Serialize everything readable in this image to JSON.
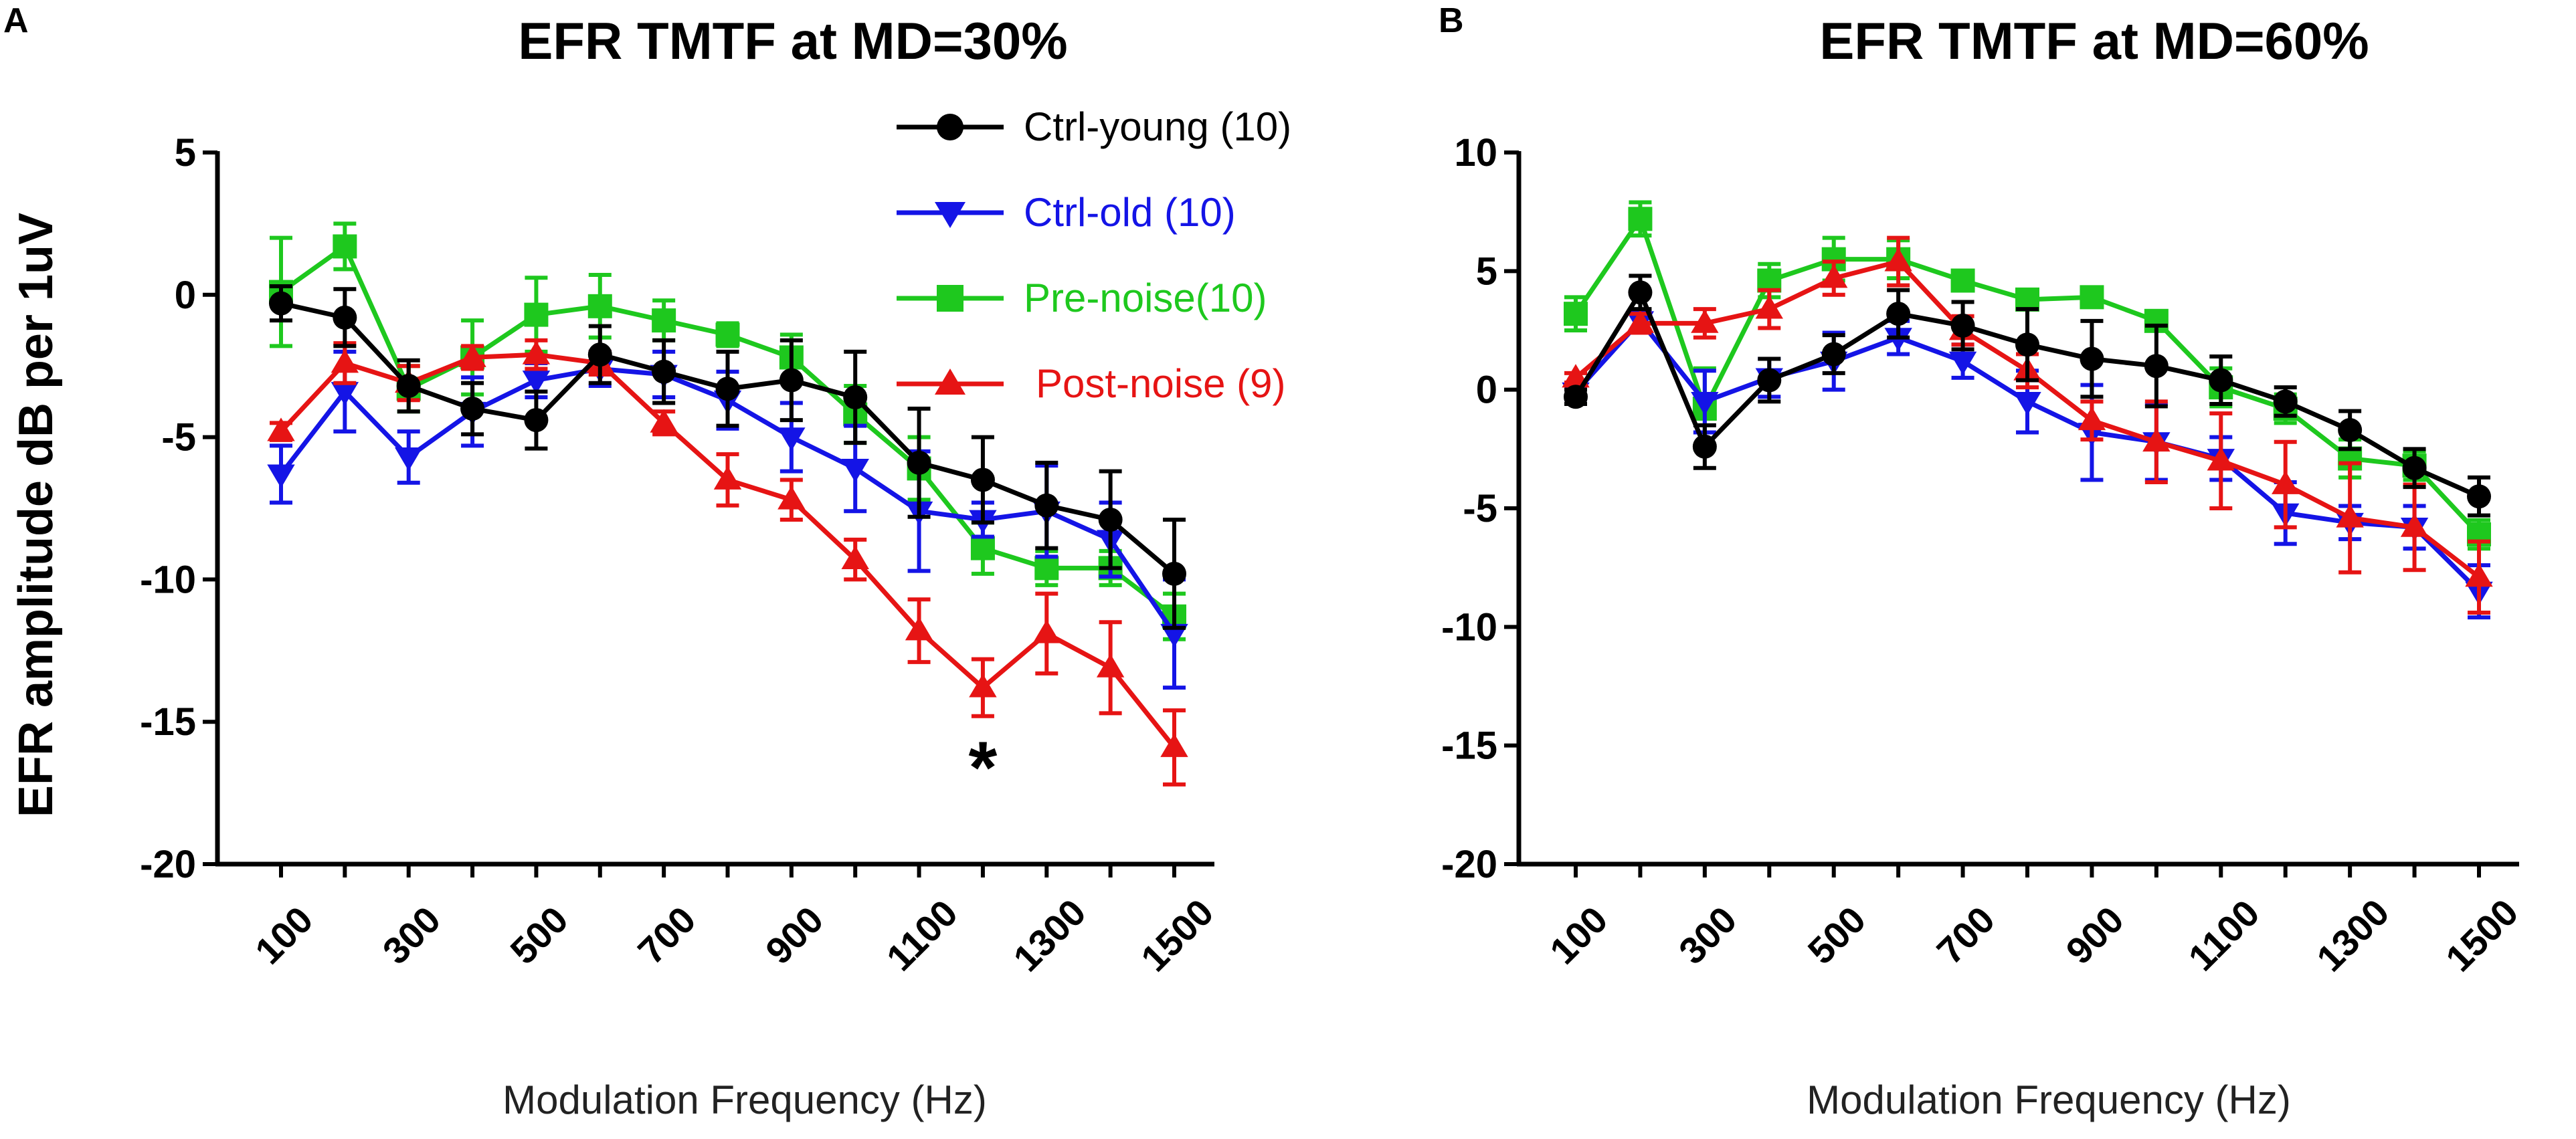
{
  "panels": [
    {
      "letter": "A",
      "title": "EFR TMTF at MD=30%"
    },
    {
      "letter": "B",
      "title": "EFR TMTF at MD=60%"
    }
  ],
  "y_axis_label": "EFR amplitude dB per 1uV",
  "x_axis_label": "Modulation Frequency (Hz)",
  "colors": {
    "ctrl_young": "#000000",
    "ctrl_old": "#1414e6",
    "pre_noise": "#1ec81e",
    "post_noise": "#e61414"
  },
  "legend": [
    {
      "label": "Ctrl-young (10)",
      "color": "#000000",
      "marker": "circle"
    },
    {
      "label": "Ctrl-old (10)",
      "color": "#1414e6",
      "marker": "triangle-down"
    },
    {
      "label": "Pre-noise(10)",
      "color": "#1ec81e",
      "marker": "square"
    },
    {
      "label": "Post-noise (9)",
      "color": "#e61414",
      "marker": "triangle-up"
    }
  ],
  "chart_data": [
    {
      "type": "line",
      "title": "EFR TMTF at MD=30%",
      "xlabel": "Modulation Frequency (Hz)",
      "ylabel": "EFR amplitude dB per 1uV",
      "x": [
        100,
        200,
        300,
        400,
        500,
        600,
        700,
        800,
        900,
        1000,
        1100,
        1200,
        1300,
        1400,
        1500
      ],
      "xticks": [
        100,
        300,
        500,
        700,
        900,
        1100,
        1300,
        1500
      ],
      "xlim": [
        50,
        1550
      ],
      "ylim": [
        -20,
        5
      ],
      "yticks": [
        5,
        0,
        -5,
        -10,
        -15,
        -20
      ],
      "annotation": {
        "text": "*",
        "x": 1200,
        "y": -16.2
      },
      "series": [
        {
          "name": "Ctrl-young (10)",
          "marker": "circle",
          "color": "#000000",
          "values": [
            -0.3,
            -0.8,
            -3.2,
            -4.0,
            -4.4,
            -2.1,
            -2.7,
            -3.3,
            -3.0,
            -3.6,
            -5.9,
            -6.5,
            -7.4,
            -7.9,
            -9.8
          ],
          "err": [
            0.6,
            1.0,
            0.9,
            0.9,
            1.0,
            1.0,
            1.1,
            1.3,
            1.4,
            1.6,
            1.9,
            1.5,
            1.5,
            1.7,
            1.9
          ]
        },
        {
          "name": "Ctrl-old (10)",
          "marker": "triangle-down",
          "color": "#1414e6",
          "values": [
            -6.3,
            -3.4,
            -5.7,
            -4.1,
            -3.0,
            -2.6,
            -2.8,
            -3.7,
            -5.0,
            -6.1,
            -7.6,
            -7.9,
            -7.6,
            -8.6,
            -11.9
          ],
          "err": [
            1.0,
            1.4,
            0.9,
            1.2,
            0.6,
            0.6,
            0.8,
            1.0,
            1.2,
            1.5,
            2.1,
            0.6,
            1.6,
            1.3,
            1.9
          ]
        },
        {
          "name": "Pre-noise(10)",
          "marker": "square",
          "color": "#1ec81e",
          "values": [
            0.1,
            1.7,
            -3.3,
            -2.2,
            -0.7,
            -0.4,
            -0.9,
            -1.4,
            -2.2,
            -4.2,
            -6.1,
            -8.9,
            -9.6,
            -9.6,
            -11.3
          ],
          "err": [
            1.9,
            0.8,
            0.8,
            1.3,
            1.3,
            1.1,
            0.7,
            0.4,
            0.8,
            1.0,
            1.1,
            0.9,
            0.6,
            0.6,
            0.8
          ]
        },
        {
          "name": "Post-noise (9)",
          "marker": "triangle-up",
          "color": "#e61414",
          "values": [
            -4.8,
            -2.4,
            -3.1,
            -2.2,
            -2.1,
            -2.4,
            -4.5,
            -6.5,
            -7.2,
            -9.3,
            -11.8,
            -13.8,
            -11.9,
            -13.1,
            -15.9
          ],
          "err": [
            0.3,
            0.7,
            0.6,
            0.4,
            0.5,
            0.4,
            0.4,
            0.9,
            0.7,
            0.7,
            1.1,
            1.0,
            1.4,
            1.6,
            1.3
          ]
        }
      ]
    },
    {
      "type": "line",
      "title": "EFR TMTF at MD=60%",
      "xlabel": "Modulation Frequency (Hz)",
      "ylabel": "EFR amplitude dB per 1uV",
      "x": [
        100,
        200,
        300,
        400,
        500,
        600,
        700,
        800,
        900,
        1000,
        1100,
        1200,
        1300,
        1400,
        1500
      ],
      "xticks": [
        100,
        300,
        500,
        700,
        900,
        1100,
        1300,
        1500
      ],
      "xlim": [
        50,
        1550
      ],
      "ylim": [
        -20,
        10
      ],
      "yticks": [
        10,
        5,
        0,
        -5,
        -10,
        -15,
        -20
      ],
      "series": [
        {
          "name": "Ctrl-young (10)",
          "marker": "circle",
          "color": "#000000",
          "values": [
            -0.3,
            4.1,
            -2.4,
            0.4,
            1.5,
            3.2,
            2.7,
            1.9,
            1.3,
            1.0,
            0.4,
            -0.5,
            -1.7,
            -3.3,
            -4.5
          ],
          "err": [
            0.3,
            0.7,
            0.9,
            0.9,
            0.8,
            1.0,
            1.0,
            1.5,
            1.6,
            1.7,
            1.0,
            0.6,
            0.8,
            0.8,
            0.8
          ]
        },
        {
          "name": "Ctrl-old (10)",
          "marker": "triangle-down",
          "color": "#1414e6",
          "values": [
            -0.1,
            2.9,
            -0.5,
            0.5,
            1.2,
            2.2,
            1.2,
            -0.5,
            -1.8,
            -2.2,
            -2.9,
            -5.2,
            -5.6,
            -5.8,
            -8.5
          ],
          "err": [
            0.3,
            0.4,
            1.3,
            0.8,
            1.2,
            0.7,
            0.7,
            1.3,
            2.0,
            1.6,
            0.9,
            1.3,
            0.7,
            0.9,
            1.1
          ]
        },
        {
          "name": "Pre-noise(10)",
          "marker": "square",
          "color": "#1ec81e",
          "values": [
            3.2,
            7.2,
            -0.8,
            4.6,
            5.5,
            5.5,
            4.6,
            3.8,
            3.9,
            2.9,
            0.1,
            -0.8,
            -2.9,
            -3.2,
            -6.1
          ],
          "err": [
            0.7,
            0.7,
            1.7,
            0.7,
            0.9,
            0.8,
            0.4,
            0.3,
            0.4,
            0.4,
            0.8,
            0.6,
            0.8,
            0.6,
            0.6
          ]
        },
        {
          "name": "Post-noise (9)",
          "marker": "triangle-up",
          "color": "#e61414",
          "values": [
            0.5,
            2.8,
            2.8,
            3.4,
            4.7,
            5.4,
            2.5,
            0.8,
            -1.3,
            -2.2,
            -3.0,
            -4.0,
            -5.4,
            -5.8,
            -7.9
          ],
          "err": [
            0.2,
            0.4,
            0.6,
            0.8,
            0.7,
            1.0,
            0.6,
            0.7,
            0.8,
            1.7,
            2.0,
            1.8,
            2.3,
            1.8,
            1.5
          ]
        }
      ]
    }
  ]
}
